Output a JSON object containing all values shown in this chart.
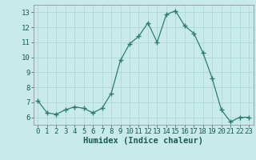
{
  "x": [
    0,
    1,
    2,
    3,
    4,
    5,
    6,
    7,
    8,
    9,
    10,
    11,
    12,
    13,
    14,
    15,
    16,
    17,
    18,
    19,
    20,
    21,
    22,
    23
  ],
  "y": [
    7.1,
    6.3,
    6.2,
    6.5,
    6.7,
    6.6,
    6.3,
    6.6,
    7.6,
    9.8,
    10.9,
    11.4,
    12.3,
    11.0,
    12.85,
    13.1,
    12.1,
    11.6,
    10.3,
    8.6,
    6.5,
    5.7,
    6.0,
    6.0
  ],
  "xlabel": "Humidex (Indice chaleur)",
  "ylim": [
    5.5,
    13.5
  ],
  "xlim": [
    -0.5,
    23.5
  ],
  "yticks": [
    6,
    7,
    8,
    9,
    10,
    11,
    12,
    13
  ],
  "xticks": [
    0,
    1,
    2,
    3,
    4,
    5,
    6,
    7,
    8,
    9,
    10,
    11,
    12,
    13,
    14,
    15,
    16,
    17,
    18,
    19,
    20,
    21,
    22,
    23
  ],
  "xtick_labels": [
    "0",
    "1",
    "2",
    "3",
    "4",
    "5",
    "6",
    "7",
    "8",
    "9",
    "10",
    "11",
    "12",
    "13",
    "14",
    "15",
    "16",
    "17",
    "18",
    "19",
    "20",
    "21",
    "22",
    "23"
  ],
  "line_color": "#2e7d6e",
  "marker_color": "#2e7d6e",
  "bg_color": "#c8eaea",
  "grid_color": "#b0d8d8",
  "xlabel_fontsize": 7.5,
  "tick_fontsize": 6.5,
  "tick_color": "#1a5c52"
}
